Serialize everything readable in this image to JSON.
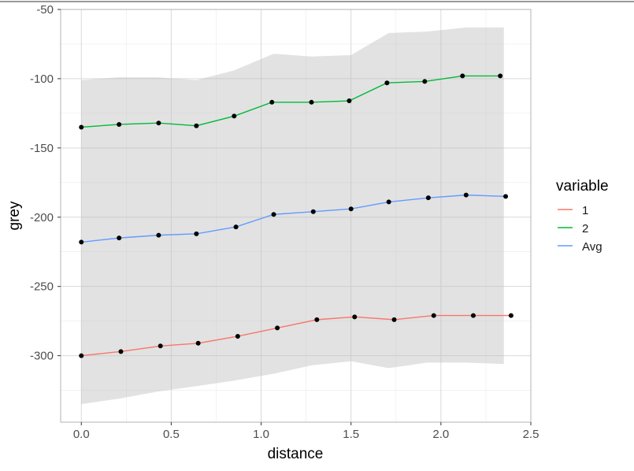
{
  "chart_data": {
    "type": "line",
    "xlabel": "distance",
    "ylabel": "grey",
    "xlim": [
      -0.115,
      2.5
    ],
    "ylim": [
      -348,
      -50
    ],
    "x_ticks": [
      0.0,
      0.5,
      1.0,
      1.5,
      2.0,
      2.5
    ],
    "x_tick_labels": [
      "0.0",
      "0.5",
      "1.0",
      "1.5",
      "2.0",
      "2.5"
    ],
    "y_ticks": [
      -50,
      -100,
      -150,
      -200,
      -250,
      -300
    ],
    "y_tick_labels": [
      "-50",
      "-100",
      "-150",
      "-200",
      "-250",
      "-300"
    ],
    "grid": true,
    "legend": {
      "title": "variable",
      "position": "right"
    },
    "band": {
      "x": [
        0.0,
        0.21,
        0.42,
        0.64,
        0.85,
        1.07,
        1.28,
        1.5,
        1.71,
        1.92,
        2.14,
        2.35
      ],
      "upper": [
        -101,
        -99,
        -99,
        -101,
        -94,
        -82,
        -84,
        -83,
        -67,
        -66,
        -63,
        -63
      ],
      "lower": [
        -335,
        -331,
        -326,
        -322,
        -318,
        -313,
        -307,
        -304,
        -309,
        -305,
        -305,
        -306
      ]
    },
    "series": [
      {
        "name": "1",
        "color": "#F8766D",
        "x": [
          0.0,
          0.22,
          0.44,
          0.65,
          0.87,
          1.09,
          1.31,
          1.52,
          1.74,
          1.96,
          2.18,
          2.39
        ],
        "y": [
          -300,
          -297,
          -293,
          -291,
          -286,
          -280,
          -274,
          -272,
          -274,
          -271,
          -271,
          -271
        ]
      },
      {
        "name": "2",
        "color": "#00BA38",
        "x": [
          0.0,
          0.21,
          0.43,
          0.64,
          0.85,
          1.06,
          1.28,
          1.49,
          1.7,
          1.91,
          2.12,
          2.33
        ],
        "y": [
          -135,
          -133,
          -132,
          -134,
          -127,
          -117,
          -117,
          -116,
          -103,
          -102,
          -98,
          -98
        ]
      },
      {
        "name": "Avg",
        "color": "#619CFF",
        "x": [
          0.0,
          0.21,
          0.43,
          0.64,
          0.86,
          1.07,
          1.29,
          1.5,
          1.71,
          1.93,
          2.14,
          2.36
        ],
        "y": [
          -218,
          -215,
          -213,
          -212,
          -207,
          -198,
          -196,
          -194,
          -189,
          -186,
          -184,
          -185
        ]
      }
    ]
  }
}
